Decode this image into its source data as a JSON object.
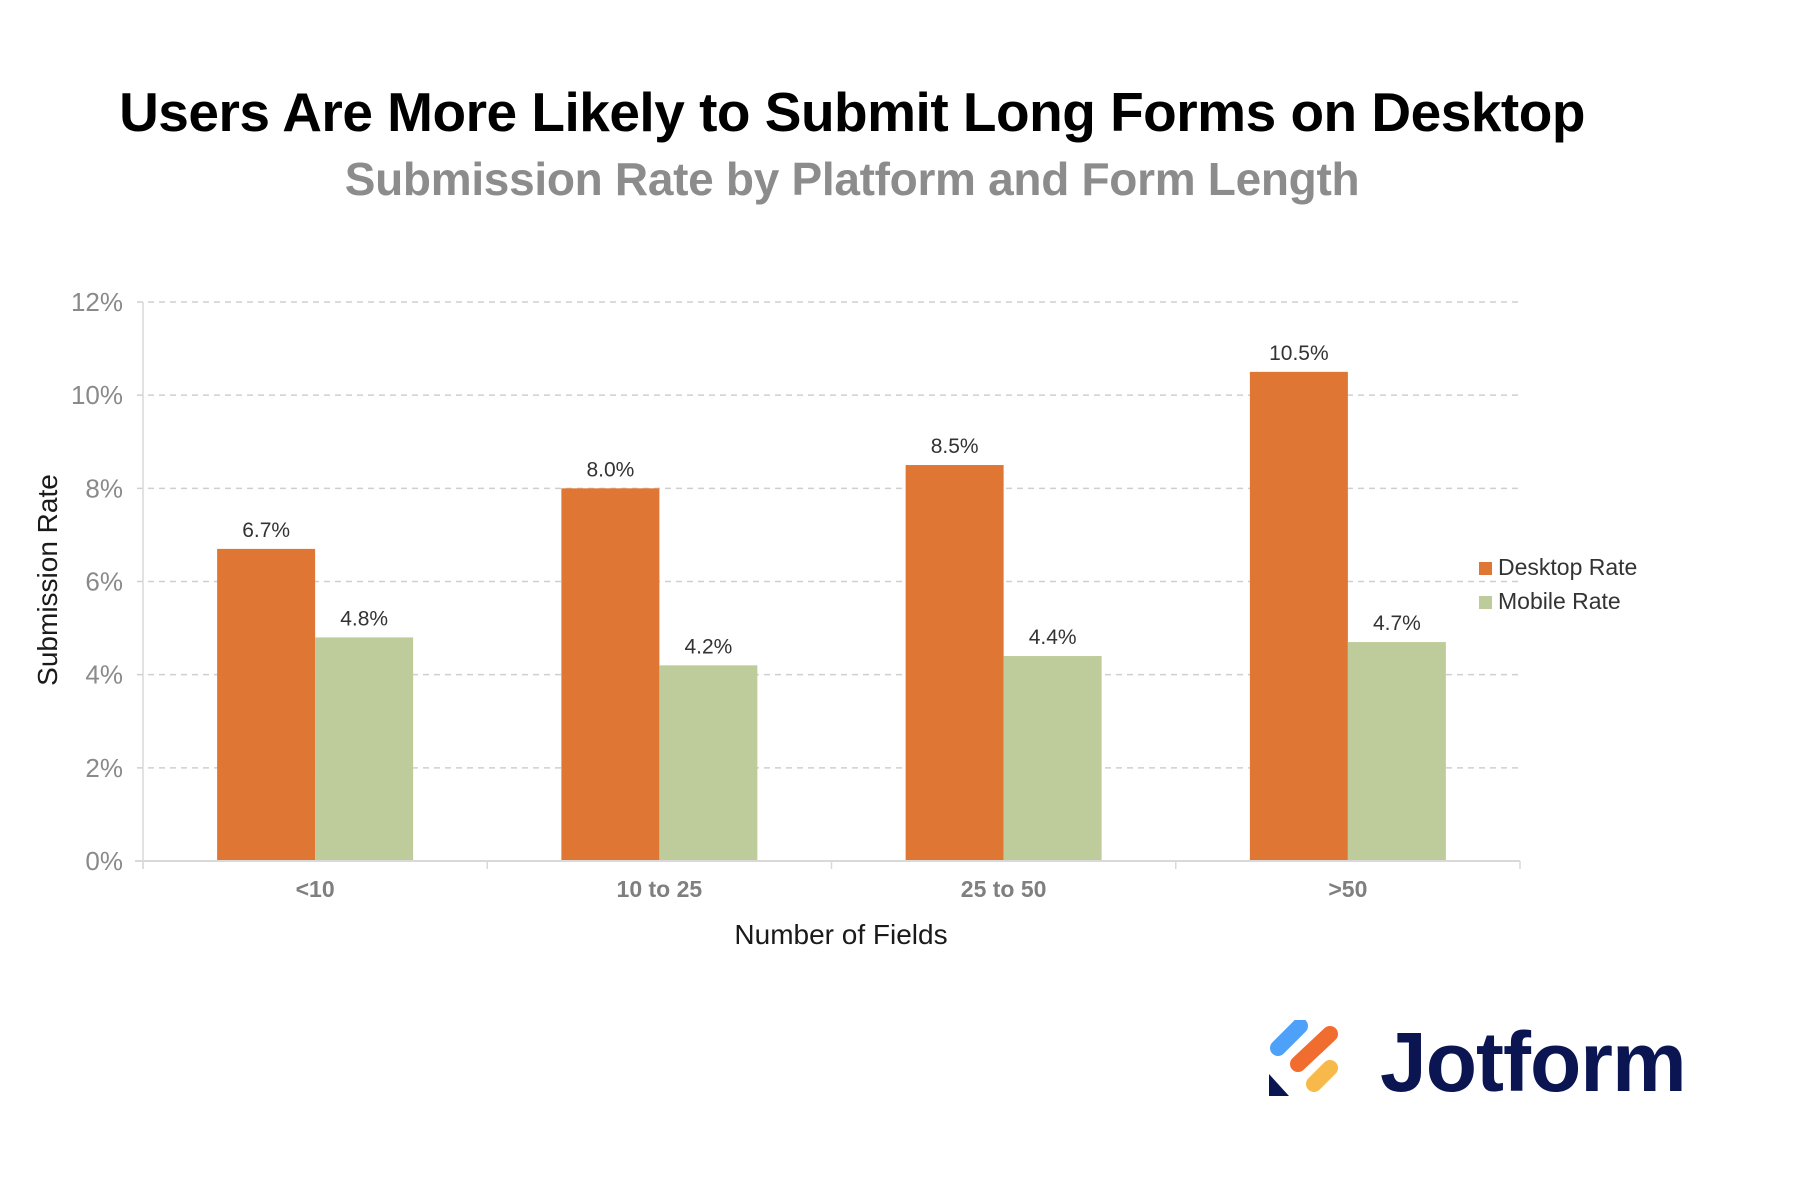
{
  "chart_data": {
    "type": "bar",
    "title": "Users Are More Likely to Submit Long Forms on Desktop",
    "subtitle": "Submission Rate by Platform and Form Length",
    "xlabel": "Number of Fields",
    "ylabel": "Submission Rate",
    "categories": [
      "<10",
      "10 to 25",
      "25 to 50",
      ">50"
    ],
    "series": [
      {
        "name": "Desktop Rate",
        "color": "#E07633",
        "values": [
          6.7,
          8.0,
          8.5,
          10.5
        ],
        "labels": [
          "6.7%",
          "8.0%",
          "8.5%",
          "10.5%"
        ]
      },
      {
        "name": "Mobile Rate",
        "color": "#BDCC9A",
        "values": [
          4.8,
          4.2,
          4.4,
          4.7
        ],
        "labels": [
          "4.8%",
          "4.2%",
          "4.4%",
          "4.7%"
        ]
      }
    ],
    "ylim": [
      0,
      12
    ],
    "yticks": [
      0,
      2,
      4,
      6,
      8,
      10,
      12
    ],
    "ytick_labels": [
      "0%",
      "2%",
      "4%",
      "6%",
      "8%",
      "10%",
      "12%"
    ],
    "grid": true,
    "legend_position": "right"
  },
  "branding": {
    "logo_text": "Jotform",
    "logo_colors": [
      "#4EA1F8",
      "#F06D2F",
      "#F7B94A",
      "#0A1551"
    ]
  }
}
